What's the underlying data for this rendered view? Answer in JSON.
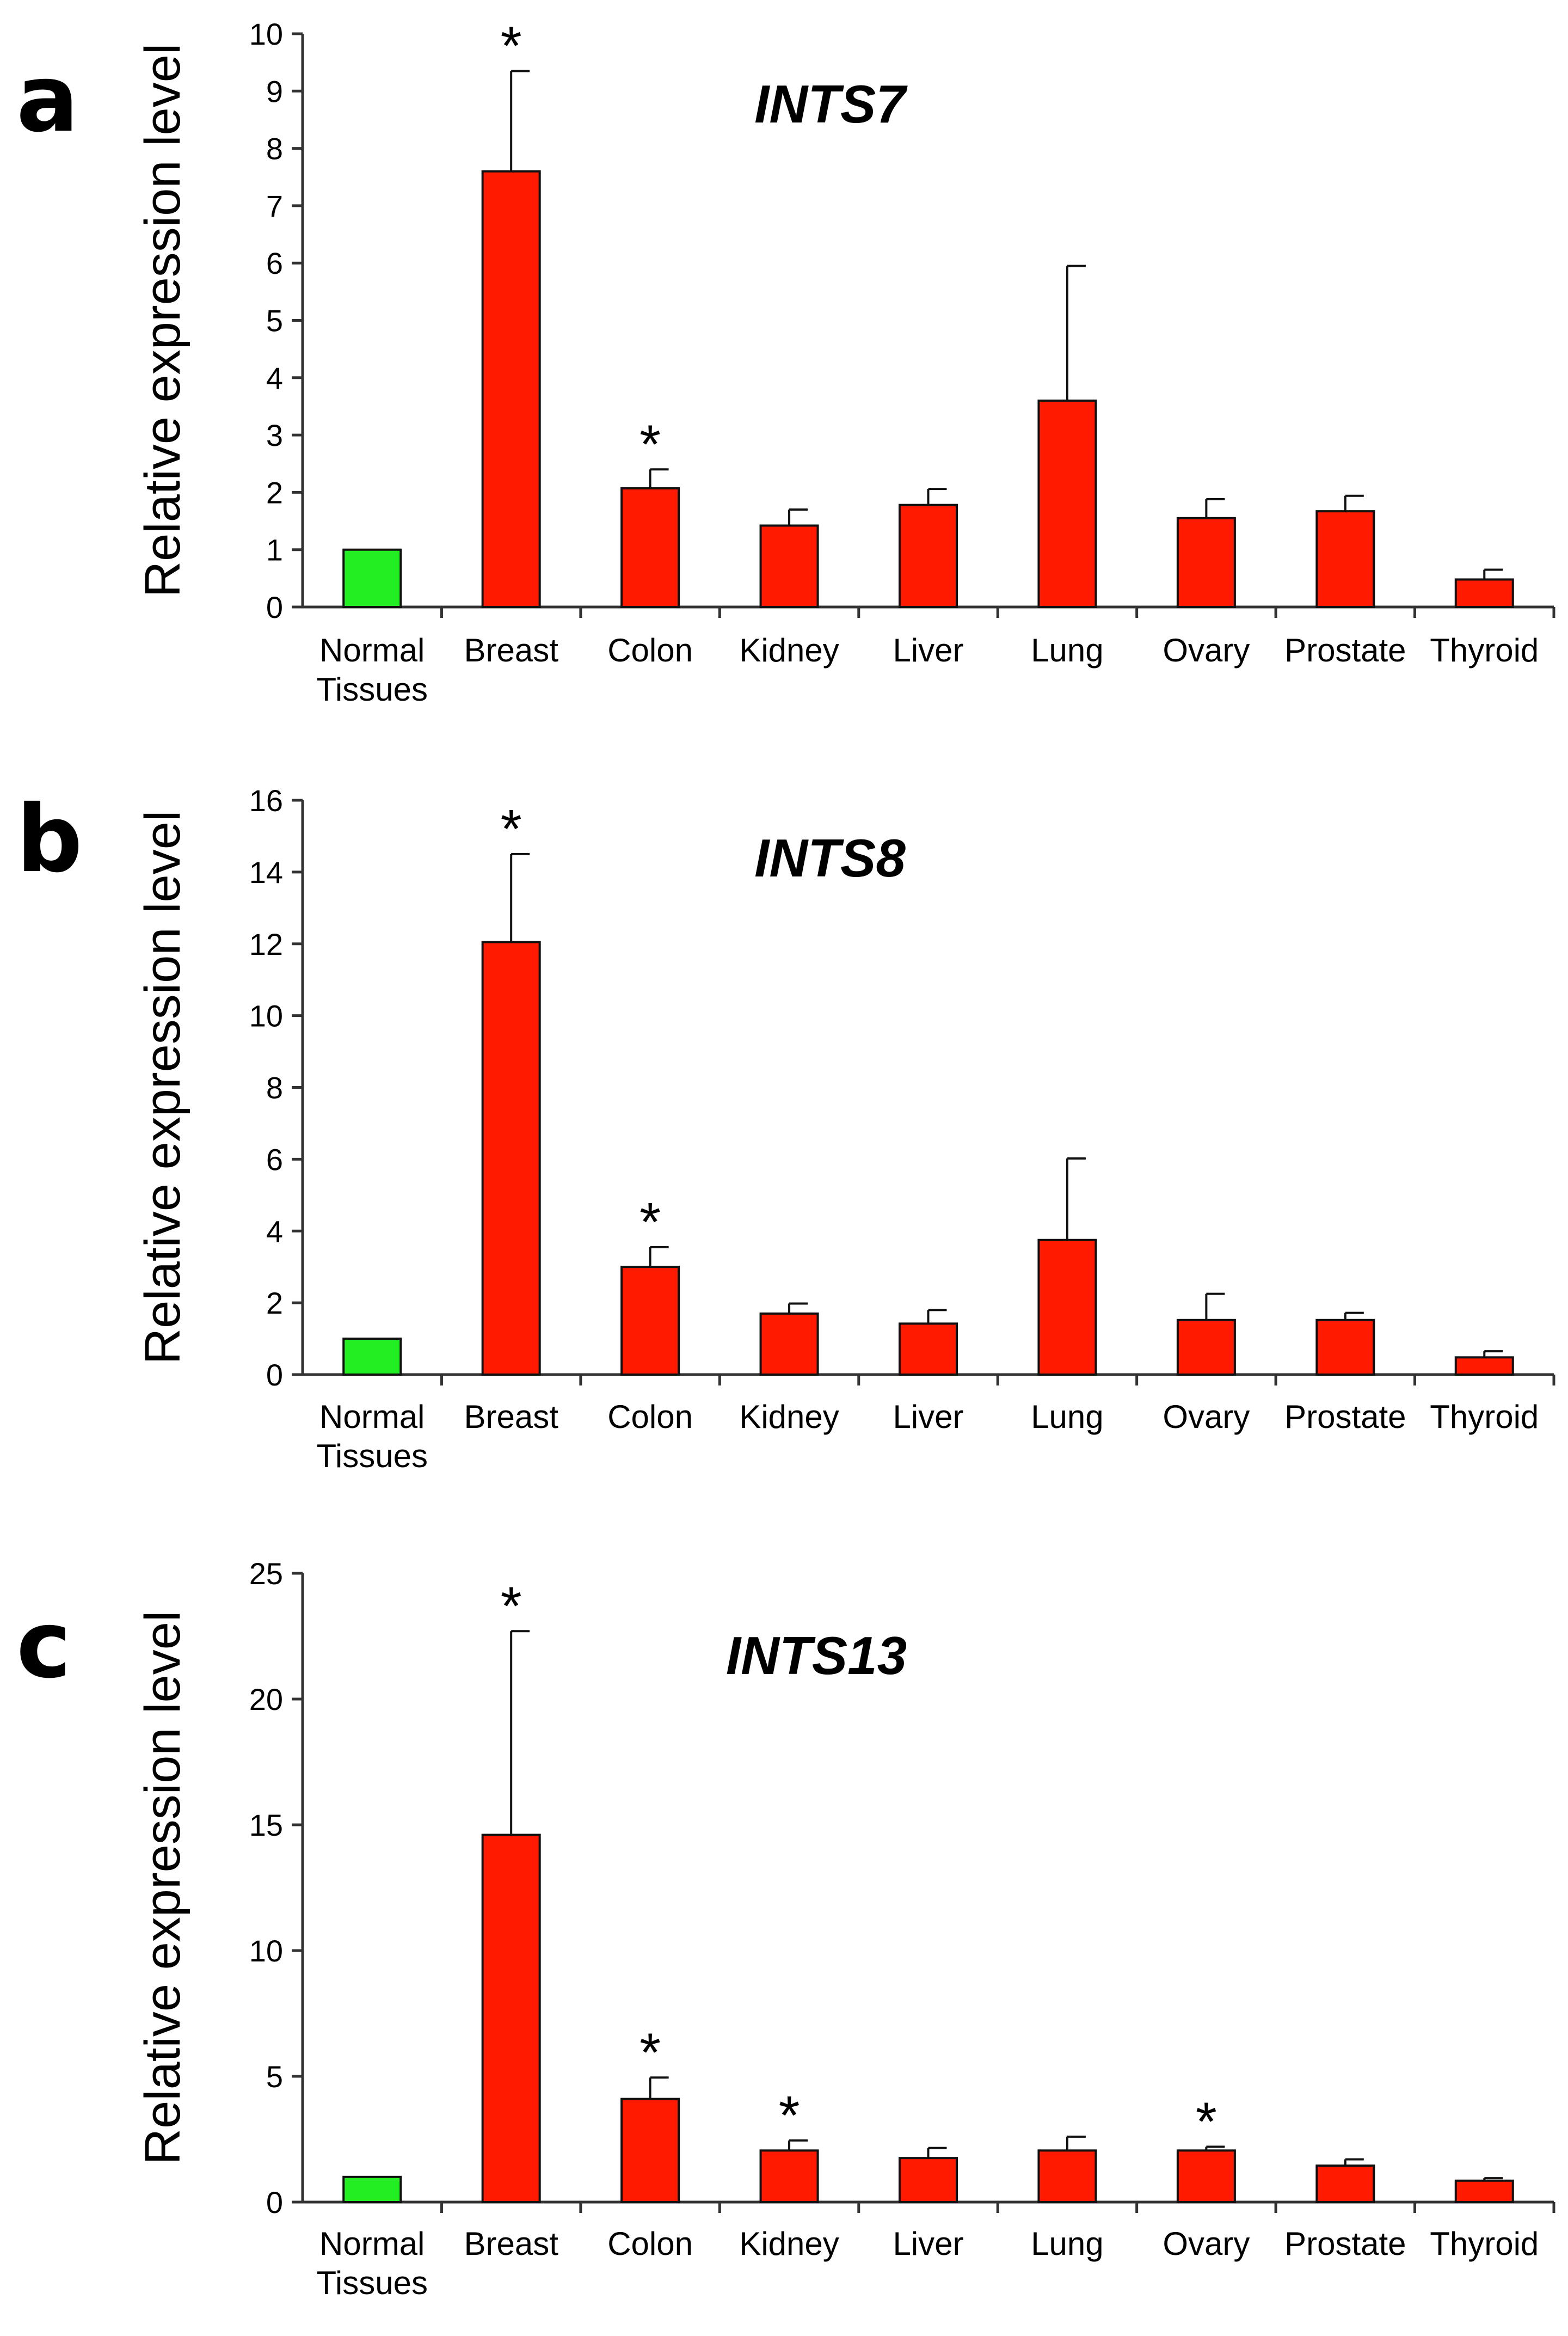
{
  "chart_data": [
    {
      "type": "bar",
      "panel_label": "a",
      "title": "INTS7",
      "ylabel": "Relative expression level",
      "xlabel": "",
      "categories": [
        "Normal\nTissues",
        "Breast",
        "Colon",
        "Kidney",
        "Liver",
        "Lung",
        "Ovary",
        "Prostate",
        "Thyroid"
      ],
      "values": [
        1.0,
        7.6,
        2.07,
        1.42,
        1.78,
        3.6,
        1.55,
        1.67,
        0.48
      ],
      "error_upper": [
        0,
        1.75,
        0.33,
        0.28,
        0.28,
        2.35,
        0.33,
        0.27,
        0.17
      ],
      "significant": [
        false,
        true,
        true,
        false,
        false,
        false,
        false,
        false,
        false
      ],
      "bar_colors": [
        "#22ee22",
        "#ff1a00",
        "#ff1a00",
        "#ff1a00",
        "#ff1a00",
        "#ff1a00",
        "#ff1a00",
        "#ff1a00",
        "#ff1a00"
      ],
      "ylim": [
        0,
        10
      ],
      "yticks": [
        "0",
        "1",
        "2",
        "3",
        "4",
        "5",
        "6",
        "7",
        "8",
        "9",
        "10"
      ],
      "grid": false,
      "legend": "none"
    },
    {
      "type": "bar",
      "panel_label": "b",
      "title": "INTS8",
      "ylabel": "Relative expression level",
      "xlabel": "",
      "categories": [
        "Normal\nTissues",
        "Breast",
        "Colon",
        "Kidney",
        "Liver",
        "Lung",
        "Ovary",
        "Prostate",
        "Thyroid"
      ],
      "values": [
        1.0,
        12.05,
        3.0,
        1.7,
        1.42,
        3.75,
        1.52,
        1.52,
        0.48
      ],
      "error_upper": [
        0,
        2.45,
        0.55,
        0.28,
        0.38,
        2.27,
        0.73,
        0.2,
        0.17
      ],
      "significant": [
        false,
        true,
        true,
        false,
        false,
        false,
        false,
        false,
        false
      ],
      "bar_colors": [
        "#22ee22",
        "#ff1a00",
        "#ff1a00",
        "#ff1a00",
        "#ff1a00",
        "#ff1a00",
        "#ff1a00",
        "#ff1a00",
        "#ff1a00"
      ],
      "ylim": [
        0,
        16
      ],
      "yticks": [
        "0",
        "2",
        "4",
        "6",
        "8",
        "10",
        "12",
        "14",
        "16"
      ],
      "grid": false,
      "legend": "none"
    },
    {
      "type": "bar",
      "panel_label": "c",
      "title": "INTS13",
      "ylabel": "Relative expression level",
      "xlabel": "",
      "categories": [
        "Normal\nTissues",
        "Breast",
        "Colon",
        "Kidney",
        "Liver",
        "Lung",
        "Ovary",
        "Prostate",
        "Thyroid"
      ],
      "values": [
        1.0,
        14.6,
        4.1,
        2.05,
        1.75,
        2.05,
        2.05,
        1.45,
        0.85
      ],
      "error_upper": [
        0,
        8.1,
        0.85,
        0.4,
        0.4,
        0.55,
        0.15,
        0.25,
        0.1
      ],
      "significant": [
        false,
        true,
        true,
        true,
        false,
        false,
        true,
        false,
        false
      ],
      "bar_colors": [
        "#22ee22",
        "#ff1a00",
        "#ff1a00",
        "#ff1a00",
        "#ff1a00",
        "#ff1a00",
        "#ff1a00",
        "#ff1a00",
        "#ff1a00"
      ],
      "ylim": [
        0,
        25
      ],
      "yticks": [
        "0",
        "5",
        "10",
        "15",
        "20",
        "25"
      ],
      "grid": false,
      "legend": "none"
    }
  ],
  "significance_marker": "*"
}
